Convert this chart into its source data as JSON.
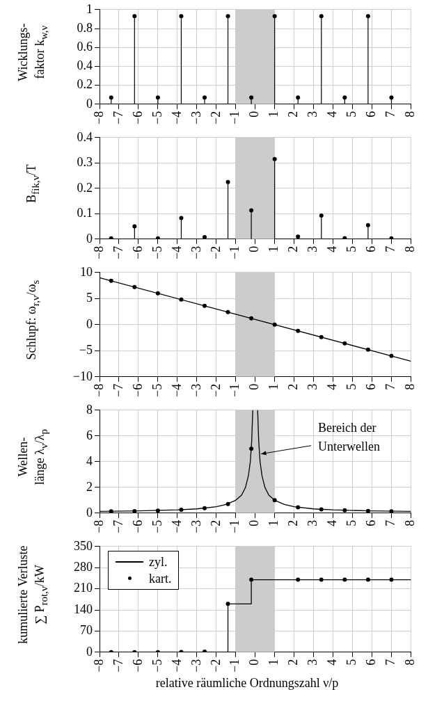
{
  "chart_data": [
    {
      "type": "lollipop",
      "ylabel": "Wicklungs-\nfaktor k$_{w,ν}$",
      "x": [
        -7.4,
        -6.2,
        -5,
        -3.8,
        -2.6,
        -1.4,
        -0.2,
        1,
        2.2,
        3.4,
        4.6,
        5.8,
        7
      ],
      "values": [
        0.07,
        0.93,
        0.07,
        0.93,
        0.07,
        0.93,
        0.07,
        0.93,
        0.07,
        0.93,
        0.07,
        0.93,
        0.07
      ],
      "color": "#000000",
      "marker": "circle",
      "xlim": [
        -8,
        8
      ],
      "xticks": [
        -8,
        -7,
        -6,
        -5,
        -4,
        -3,
        -2,
        -1,
        0,
        1,
        2,
        3,
        4,
        5,
        6,
        7,
        8
      ],
      "ylim": [
        0,
        1
      ],
      "yticks": [
        0,
        0.2,
        0.4,
        0.6,
        0.8,
        1
      ],
      "grid": true,
      "bands": [
        {
          "axis": "x",
          "from": -1,
          "to": 1,
          "color": "#cccccc"
        }
      ]
    },
    {
      "type": "lollipop",
      "ylabel": "B$_{fik,ν}$/T",
      "x": [
        -7.4,
        -6.2,
        -5,
        -3.8,
        -2.6,
        -1.4,
        -0.2,
        1,
        2.2,
        3.4,
        4.6,
        5.8,
        7
      ],
      "values": [
        0.003,
        0.05,
        0.003,
        0.083,
        0.008,
        0.225,
        0.113,
        0.315,
        0.01,
        0.093,
        0.004,
        0.055,
        0.003
      ],
      "color": "#000000",
      "marker": "circle",
      "xlim": [
        -8,
        8
      ],
      "xticks": [
        -8,
        -7,
        -6,
        -5,
        -4,
        -3,
        -2,
        -1,
        0,
        1,
        2,
        3,
        4,
        5,
        6,
        7,
        8
      ],
      "ylim": [
        0,
        0.4
      ],
      "yticks": [
        0,
        0.1,
        0.2,
        0.3,
        0.4
      ],
      "grid": true,
      "bands": [
        {
          "axis": "x",
          "from": -1,
          "to": 1,
          "color": "#cccccc"
        }
      ]
    },
    {
      "type": "line",
      "ylabel": "Schlupf: ω$_{r,ν}$/ω$_{s}$",
      "series": [
        {
          "type": "line",
          "x": [
            -8,
            8
          ],
          "values": [
            9,
            -7
          ],
          "color": "#000000",
          "marker": "none"
        },
        {
          "type": "scatter",
          "x": [
            -7.4,
            -6.2,
            -5,
            -3.8,
            -2.6,
            -1.4,
            -0.2,
            1,
            2.2,
            3.4,
            4.6,
            5.8,
            7
          ],
          "values": [
            8.4,
            7.2,
            6,
            4.8,
            3.6,
            2.4,
            1.2,
            0,
            -1.2,
            -2.4,
            -3.6,
            -4.8,
            -6
          ],
          "color": "#000000",
          "marker": "circle"
        }
      ],
      "xlim": [
        -8,
        8
      ],
      "xticks": [
        -8,
        -7,
        -6,
        -5,
        -4,
        -3,
        -2,
        -1,
        0,
        1,
        2,
        3,
        4,
        5,
        6,
        7,
        8
      ],
      "ylim": [
        -10,
        10
      ],
      "yticks": [
        -10,
        -5,
        0,
        5,
        10
      ],
      "grid": true,
      "bands": [
        {
          "axis": "x",
          "from": -1,
          "to": 1,
          "color": "#cccccc"
        }
      ]
    },
    {
      "type": "line",
      "ylabel": "Wellen-\nlänge λ$_{ν}$/λ$_{p}$",
      "series": [
        {
          "type": "line",
          "x": [
            -8,
            -6,
            -4,
            -3,
            -2,
            -1.5,
            -1,
            -0.7,
            -0.5,
            -0.35,
            -0.25,
            -0.18,
            -0.125,
            0,
            0.125,
            0.18,
            0.25,
            0.35,
            0.5,
            0.7,
            1,
            1.5,
            2,
            3,
            4,
            6,
            8
          ],
          "values": [
            0.13,
            0.17,
            0.25,
            0.33,
            0.5,
            0.67,
            1,
            1.4,
            2,
            2.9,
            4,
            5.6,
            8,
            null,
            8,
            5.6,
            4,
            2.9,
            2,
            1.4,
            1,
            0.67,
            0.5,
            0.33,
            0.25,
            0.17,
            0.13
          ],
          "color": "#000000",
          "marker": "none"
        },
        {
          "type": "scatter",
          "x": [
            -7.4,
            -6.2,
            -5,
            -3.8,
            -2.6,
            -1.4,
            -0.2,
            1,
            2.2,
            3.4,
            4.6,
            5.8,
            7
          ],
          "values": [
            0.14,
            0.16,
            0.2,
            0.26,
            0.38,
            0.71,
            5,
            1,
            0.45,
            0.29,
            0.22,
            0.17,
            0.14
          ],
          "color": "#000000",
          "marker": "circle"
        }
      ],
      "xlim": [
        -8,
        8
      ],
      "xticks": [
        -8,
        -7,
        -6,
        -5,
        -4,
        -3,
        -2,
        -1,
        0,
        1,
        2,
        3,
        4,
        5,
        6,
        7,
        8
      ],
      "ylim": [
        0,
        8
      ],
      "yticks": [
        0,
        2,
        4,
        6,
        8
      ],
      "grid": true,
      "bands": [
        {
          "axis": "x",
          "from": -1,
          "to": 1,
          "color": "#cccccc"
        }
      ],
      "annotations": [
        {
          "text": "Bereich der\nUnterwellen",
          "x": 0.3,
          "y": 4.6
        }
      ]
    },
    {
      "type": "step",
      "ylabel": "kumulierte Verluste\n∑ P$_{rot,ν}$/kW",
      "xlabel": "relative räumliche Ordnungszahl ν/p",
      "series": [
        {
          "type": "step",
          "name": "zyl.",
          "x": [
            -8,
            -1.4,
            -0.2,
            8
          ],
          "values": [
            0,
            160,
            240,
            240
          ],
          "color": "#000000",
          "marker": "none"
        },
        {
          "type": "scatter",
          "name": "kart.",
          "x": [
            -7.4,
            -6.2,
            -5,
            -3.8,
            -2.6,
            -1.4,
            -0.2,
            2.2,
            3.4,
            4.6,
            5.8,
            7
          ],
          "values": [
            0,
            0,
            0,
            1,
            2,
            160,
            240,
            240,
            240,
            240,
            240,
            240
          ],
          "color": "#000000",
          "marker": "circle"
        }
      ],
      "xlim": [
        -8,
        8
      ],
      "xticks": [
        -8,
        -7,
        -6,
        -5,
        -4,
        -3,
        -2,
        -1,
        0,
        1,
        2,
        3,
        4,
        5,
        6,
        7,
        8
      ],
      "ylim": [
        0,
        350
      ],
      "yticks": [
        0,
        70,
        140,
        210,
        280,
        350
      ],
      "grid": true,
      "legend": "top left",
      "bands": [
        {
          "axis": "x",
          "from": -1,
          "to": 1,
          "color": "#cccccc"
        }
      ]
    }
  ]
}
